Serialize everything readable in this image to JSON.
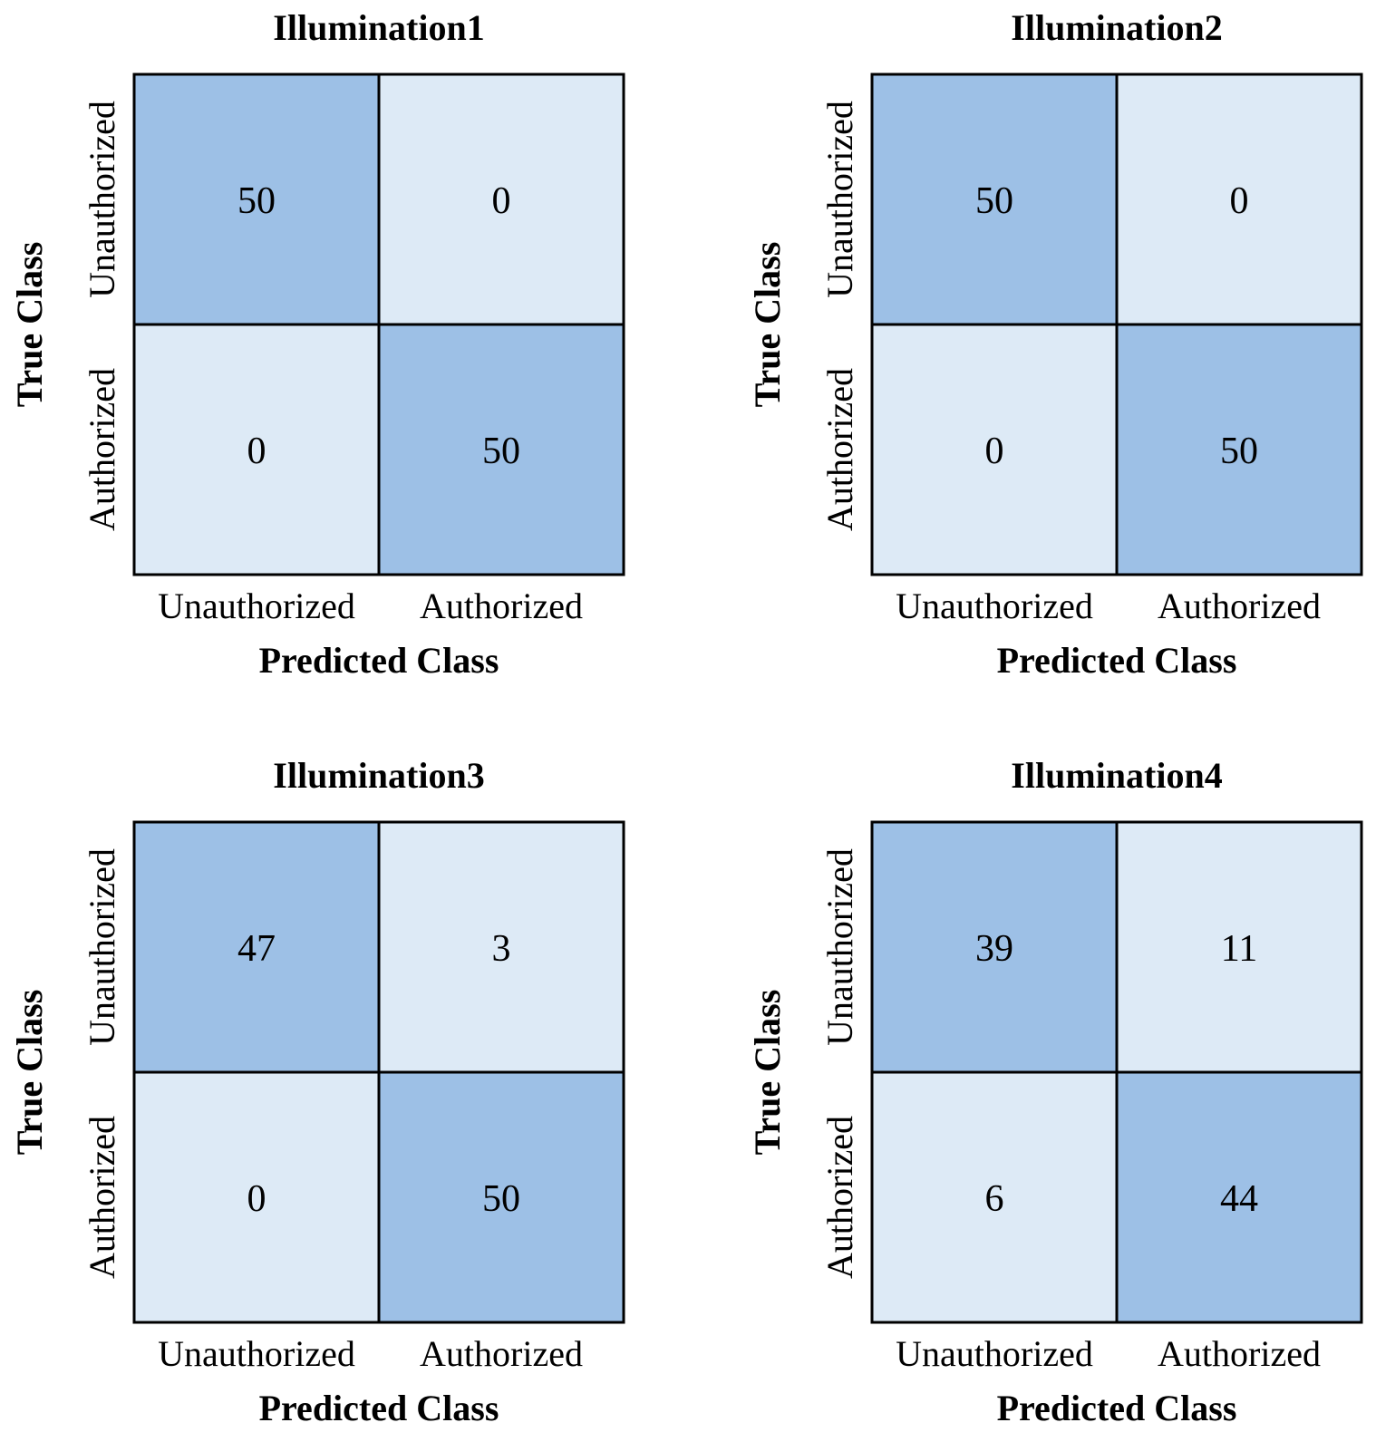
{
  "chart_data": [
    {
      "type": "heatmap",
      "title": "Illumination1",
      "xlabel": "Predicted Class",
      "ylabel": "True Class",
      "x_categories": [
        "Unauthorized",
        "Authorized"
      ],
      "y_categories": [
        "Unauthorized",
        "Authorized"
      ],
      "values": [
        [
          50,
          0
        ],
        [
          0,
          50
        ]
      ]
    },
    {
      "type": "heatmap",
      "title": "Illumination2",
      "xlabel": "Predicted Class",
      "ylabel": "True Class",
      "x_categories": [
        "Unauthorized",
        "Authorized"
      ],
      "y_categories": [
        "Unauthorized",
        "Authorized"
      ],
      "values": [
        [
          50,
          0
        ],
        [
          0,
          50
        ]
      ]
    },
    {
      "type": "heatmap",
      "title": "Illumination3",
      "xlabel": "Predicted Class",
      "ylabel": "True Class",
      "x_categories": [
        "Unauthorized",
        "Authorized"
      ],
      "y_categories": [
        "Unauthorized",
        "Authorized"
      ],
      "values": [
        [
          47,
          3
        ],
        [
          0,
          50
        ]
      ]
    },
    {
      "type": "heatmap",
      "title": "Illumination4",
      "xlabel": "Predicted Class",
      "ylabel": "True Class",
      "x_categories": [
        "Unauthorized",
        "Authorized"
      ],
      "y_categories": [
        "Unauthorized",
        "Authorized"
      ],
      "values": [
        [
          39,
          11
        ],
        [
          6,
          44
        ]
      ]
    }
  ],
  "colors": {
    "diagonal": "#9dc0e6",
    "off_diagonal": "#ddeaf6",
    "border": "#000000"
  }
}
